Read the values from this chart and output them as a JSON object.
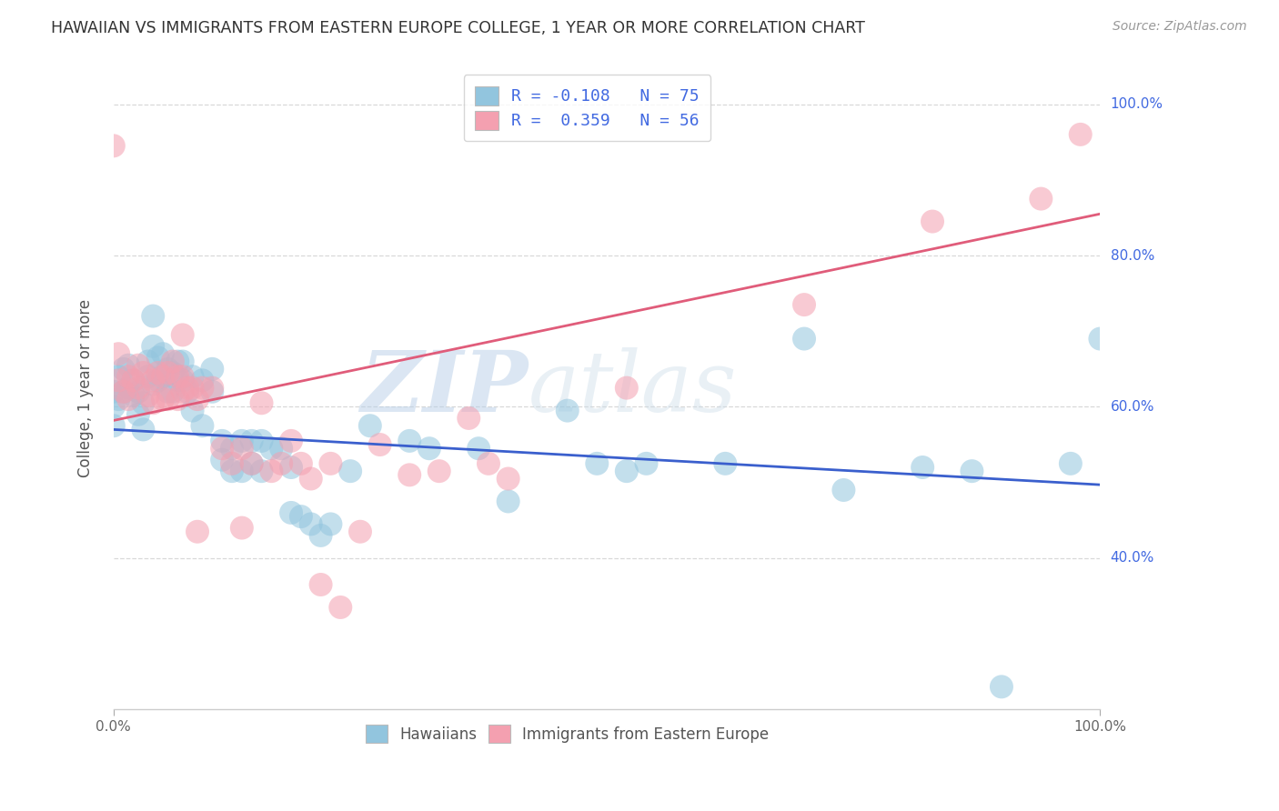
{
  "title": "HAWAIIAN VS IMMIGRANTS FROM EASTERN EUROPE COLLEGE, 1 YEAR OR MORE CORRELATION CHART",
  "source": "Source: ZipAtlas.com",
  "ylabel": "College, 1 year or more",
  "legend_label1_short": "Hawaiians",
  "legend_label2_short": "Immigrants from Eastern Europe",
  "blue_color": "#92c5de",
  "blue_line_color": "#3a5fcd",
  "pink_color": "#f4a0b0",
  "pink_line_color": "#e05c7a",
  "R1": -0.108,
  "N1": 75,
  "R2": 0.359,
  "N2": 56,
  "blue_line_x": [
    0.0,
    1.0
  ],
  "blue_line_y": [
    0.57,
    0.497
  ],
  "pink_line_x": [
    0.0,
    1.0
  ],
  "pink_line_y": [
    0.582,
    0.855
  ],
  "xlim": [
    0.0,
    1.0
  ],
  "ylim": [
    0.2,
    1.05
  ],
  "yticks": [
    0.4,
    0.6,
    0.8,
    1.0
  ],
  "ytick_labels": [
    "40.0%",
    "60.0%",
    "80.0%",
    "100.0%"
  ],
  "xticks": [
    0.0,
    1.0
  ],
  "xtick_labels": [
    "0.0%",
    "100.0%"
  ],
  "blue_scatter_x": [
    0.0,
    0.0,
    0.0,
    0.005,
    0.005,
    0.01,
    0.01,
    0.015,
    0.015,
    0.02,
    0.02,
    0.025,
    0.025,
    0.03,
    0.03,
    0.035,
    0.035,
    0.04,
    0.04,
    0.04,
    0.045,
    0.045,
    0.05,
    0.05,
    0.055,
    0.055,
    0.06,
    0.06,
    0.065,
    0.065,
    0.07,
    0.07,
    0.075,
    0.08,
    0.08,
    0.09,
    0.09,
    0.1,
    0.1,
    0.11,
    0.11,
    0.12,
    0.12,
    0.13,
    0.13,
    0.14,
    0.14,
    0.15,
    0.15,
    0.16,
    0.17,
    0.18,
    0.19,
    0.2,
    0.21,
    0.22,
    0.24,
    0.26,
    0.3,
    0.32,
    0.37,
    0.4,
    0.46,
    0.49,
    0.52,
    0.54,
    0.62,
    0.7,
    0.74,
    0.82,
    0.87,
    0.9,
    0.97,
    1.0,
    0.18
  ],
  "blue_scatter_y": [
    0.62,
    0.6,
    0.575,
    0.64,
    0.61,
    0.65,
    0.62,
    0.655,
    0.625,
    0.635,
    0.615,
    0.62,
    0.59,
    0.605,
    0.57,
    0.66,
    0.64,
    0.72,
    0.68,
    0.63,
    0.665,
    0.635,
    0.67,
    0.64,
    0.65,
    0.62,
    0.645,
    0.62,
    0.66,
    0.635,
    0.66,
    0.635,
    0.62,
    0.64,
    0.595,
    0.635,
    0.575,
    0.65,
    0.62,
    0.555,
    0.53,
    0.545,
    0.515,
    0.555,
    0.515,
    0.555,
    0.525,
    0.555,
    0.515,
    0.545,
    0.545,
    0.52,
    0.455,
    0.445,
    0.43,
    0.445,
    0.515,
    0.575,
    0.555,
    0.545,
    0.545,
    0.475,
    0.595,
    0.525,
    0.515,
    0.525,
    0.525,
    0.69,
    0.49,
    0.52,
    0.515,
    0.23,
    0.525,
    0.69,
    0.46
  ],
  "pink_scatter_x": [
    0.005,
    0.005,
    0.01,
    0.015,
    0.015,
    0.02,
    0.025,
    0.025,
    0.03,
    0.035,
    0.04,
    0.04,
    0.045,
    0.05,
    0.05,
    0.055,
    0.055,
    0.06,
    0.065,
    0.065,
    0.07,
    0.07,
    0.075,
    0.08,
    0.085,
    0.09,
    0.1,
    0.11,
    0.12,
    0.13,
    0.14,
    0.15,
    0.17,
    0.18,
    0.19,
    0.2,
    0.22,
    0.25,
    0.27,
    0.3,
    0.33,
    0.36,
    0.38,
    0.4,
    0.52,
    0.7,
    0.83,
    0.94,
    0.98,
    0.0,
    0.21,
    0.16,
    0.07,
    0.085,
    0.13,
    0.23
  ],
  "pink_scatter_y": [
    0.67,
    0.635,
    0.62,
    0.64,
    0.61,
    0.635,
    0.655,
    0.625,
    0.645,
    0.615,
    0.635,
    0.605,
    0.645,
    0.64,
    0.61,
    0.645,
    0.61,
    0.66,
    0.64,
    0.61,
    0.64,
    0.62,
    0.625,
    0.625,
    0.61,
    0.625,
    0.625,
    0.545,
    0.525,
    0.545,
    0.525,
    0.605,
    0.525,
    0.555,
    0.525,
    0.505,
    0.525,
    0.435,
    0.55,
    0.51,
    0.515,
    0.585,
    0.525,
    0.505,
    0.625,
    0.735,
    0.845,
    0.875,
    0.96,
    0.945,
    0.365,
    0.515,
    0.695,
    0.435,
    0.44,
    0.335
  ],
  "watermark_zip": "ZIP",
  "watermark_atlas": "atlas",
  "background_color": "#ffffff",
  "grid_color": "#d8d8d8"
}
